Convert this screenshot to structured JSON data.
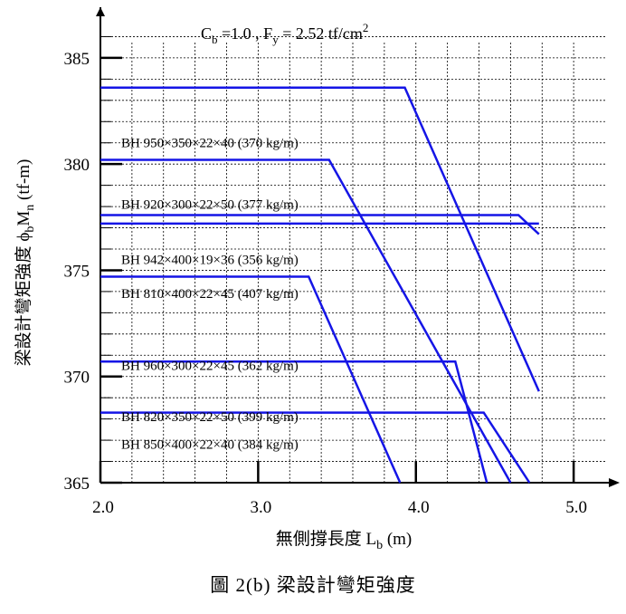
{
  "chart_data": {
    "type": "line",
    "title": "",
    "annotation_parts": [
      "C",
      "b",
      " =1.0 , F",
      "y",
      " = 2.52 tf/cm",
      "2"
    ],
    "xlabel_parts": [
      "無側撐長度  L",
      "b",
      " (m)"
    ],
    "ylabel_parts": [
      "梁設計彎矩強度  ϕ",
      "b",
      "M",
      "n",
      " (tf-m)"
    ],
    "xlim": [
      2.0,
      5.2
    ],
    "ylim": [
      365,
      387
    ],
    "x_ticks": [
      "2.0",
      "3.0",
      "4.0",
      "5.0"
    ],
    "y_ticks": [
      "365",
      "370",
      "375",
      "380",
      "385"
    ],
    "series": [
      {
        "name": "BH 950×350×22×40 (370 kg/m)",
        "x": [
          2.0,
          3.93,
          4.78
        ],
        "y": [
          383.6,
          383.6,
          369.3
        ]
      },
      {
        "name": "BH 920×300×22×50 (377 kg/m)",
        "x": [
          2.0,
          3.45,
          4.6
        ],
        "y": [
          380.2,
          380.2,
          365
        ]
      },
      {
        "name": "BH 942×400×19×36 (356 kg/m)",
        "x": [
          2.0,
          4.65,
          4.78
        ],
        "y": [
          377.6,
          377.6,
          376.7
        ]
      },
      {
        "name": "BH 810×400×22×45 (407 kg/m)",
        "x": [
          2.0,
          4.78
        ],
        "y": [
          377.2,
          377.2
        ]
      },
      {
        "name": "BH 960×300×22×45 (362 kg/m)",
        "x": [
          2.0,
          3.32,
          3.9
        ],
        "y": [
          374.7,
          374.7,
          365
        ]
      },
      {
        "name": "BH 820×350×22×50 (399 kg/m)",
        "x": [
          2.0,
          4.25,
          4.45
        ],
        "y": [
          370.7,
          370.7,
          365
        ]
      },
      {
        "name": "BH 850×400×22×40 (384 kg/m)",
        "x": [
          2.0,
          4.43,
          4.72
        ],
        "y": [
          368.3,
          368.3,
          365
        ]
      }
    ],
    "series_label_y": [
      380.8,
      377.9,
      375.3,
      373.7,
      370.3,
      367.9,
      366.6
    ],
    "grid": true,
    "line_color": "#1515e6"
  },
  "caption": "圖 2(b)  梁設計彎矩強度"
}
